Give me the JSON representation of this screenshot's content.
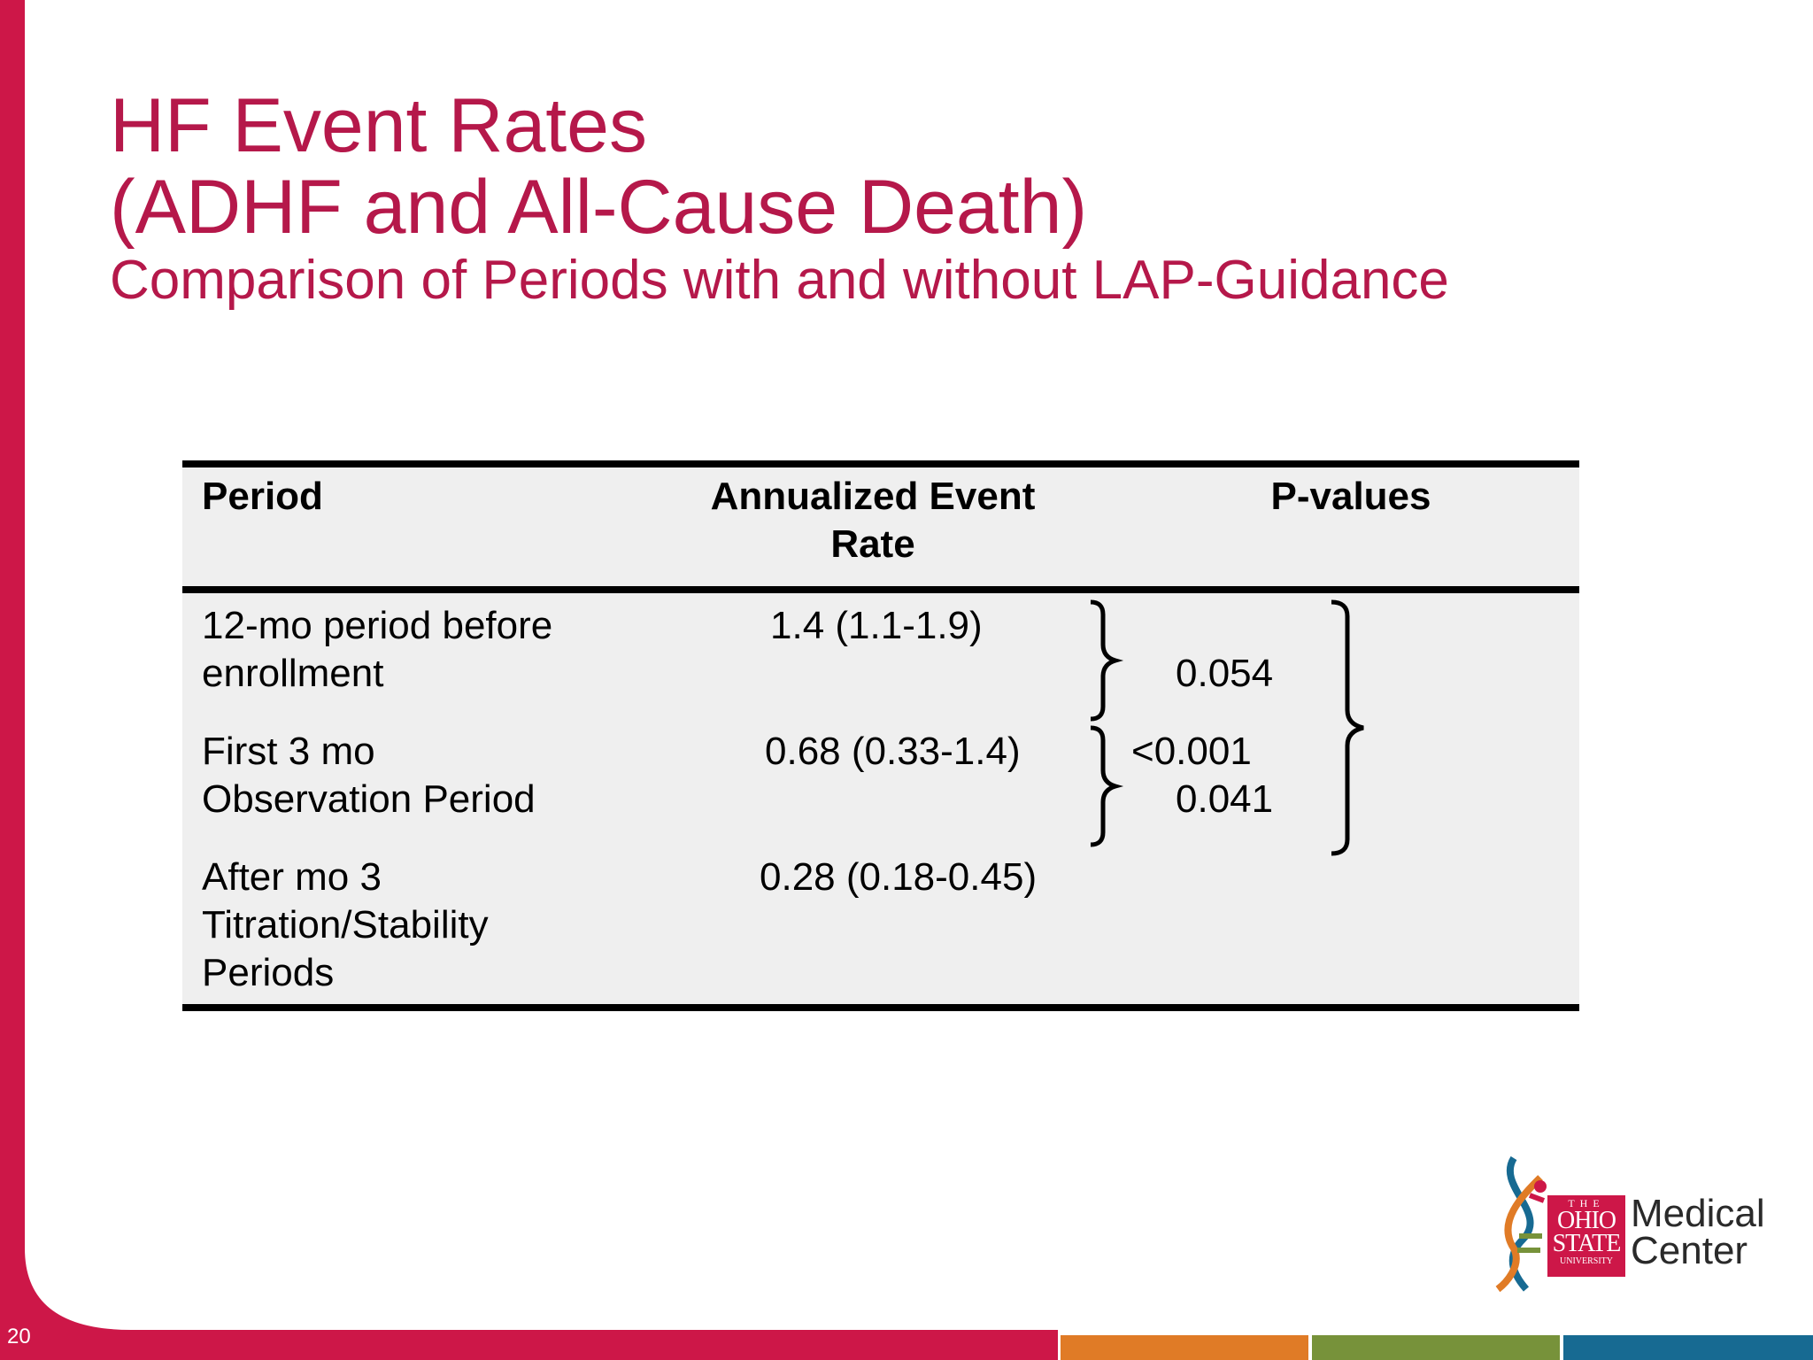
{
  "slide": {
    "title_line1": "HF Event Rates",
    "title_line2": "(ADHF and All-Cause Death)",
    "subtitle": "Comparison of Periods with and without LAP-Guidance",
    "page_number": "20"
  },
  "table": {
    "headers": {
      "period": "Period",
      "rate_line1": "Annualized Event",
      "rate_line2": "Rate",
      "pvalues": "P-values"
    },
    "rows": [
      {
        "period_line1": "12-mo period before",
        "period_line2": "enrollment",
        "period_line3": "",
        "rate": "1.4 (1.1-1.9)"
      },
      {
        "period_line1": "First 3 mo",
        "period_line2": "Observation Period",
        "period_line3": "",
        "rate": "0.68 (0.33-1.4)"
      },
      {
        "period_line1": "After mo 3",
        "period_line2": "Titration/Stability",
        "period_line3": "Periods",
        "rate": "0.28 (0.18-0.45)"
      }
    ],
    "pvalues": {
      "row1_vs_row2": "0.054",
      "row1_vs_row3": "<0.001",
      "row2_vs_row3": "0.041"
    }
  },
  "logo": {
    "the": "THE",
    "ohio": "OHIO",
    "state": "STATE",
    "university": "UNIVERSITY",
    "line1": "Medical",
    "line2": "Center"
  },
  "colors": {
    "brand_red": "#cd1748",
    "title_red": "#b5184a",
    "orange": "#e07b26",
    "green": "#77923a",
    "blue": "#176a92"
  }
}
